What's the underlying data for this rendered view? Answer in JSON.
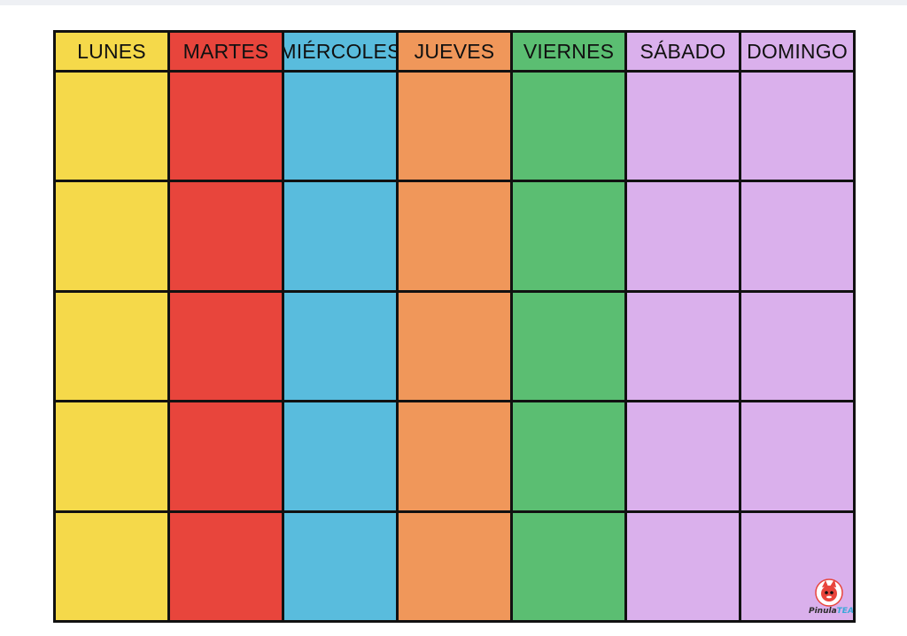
{
  "planner": {
    "days": [
      {
        "label": "LUNES",
        "color": "#f5d94a"
      },
      {
        "label": "MARTES",
        "color": "#e8453c"
      },
      {
        "label": "MIÉRCOLES",
        "color": "#59bcdd"
      },
      {
        "label": "JUEVES",
        "color": "#f0975a"
      },
      {
        "label": "VIERNES",
        "color": "#5bbe72"
      },
      {
        "label": "SÁBADO",
        "color": "#dab0ec"
      },
      {
        "label": "DOMINGO",
        "color": "#dab0ec"
      }
    ],
    "row_count": 5
  },
  "logo": {
    "name": "Pinula",
    "suffix": "TEA"
  }
}
